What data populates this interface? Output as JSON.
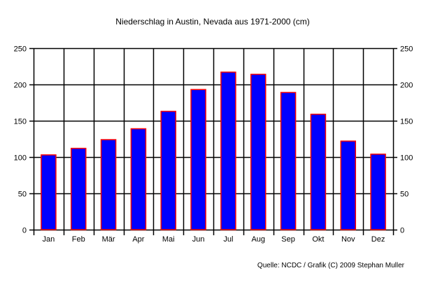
{
  "chart_data": {
    "type": "bar",
    "title": "Niederschlag in Austin, Nevada aus 1971-2000 (cm)",
    "categories": [
      "Jan",
      "Feb",
      "Mär",
      "Apr",
      "Mai",
      "Jun",
      "Jul",
      "Aug",
      "Sep",
      "Okt",
      "Nov",
      "Dez"
    ],
    "values": [
      103,
      112,
      124,
      139,
      163,
      193,
      217,
      214,
      189,
      159,
      122,
      104
    ],
    "ylim": [
      0,
      250
    ],
    "yticks": [
      0,
      50,
      100,
      150,
      200,
      250
    ],
    "grid": true,
    "y_axis_both_sides": true,
    "bar_fill": "#0000ff",
    "bar_stroke": "#ff0000",
    "xlabel": "",
    "ylabel": "",
    "source": "Quelle: NCDC / Grafik (C) 2009 Stephan Muller"
  }
}
